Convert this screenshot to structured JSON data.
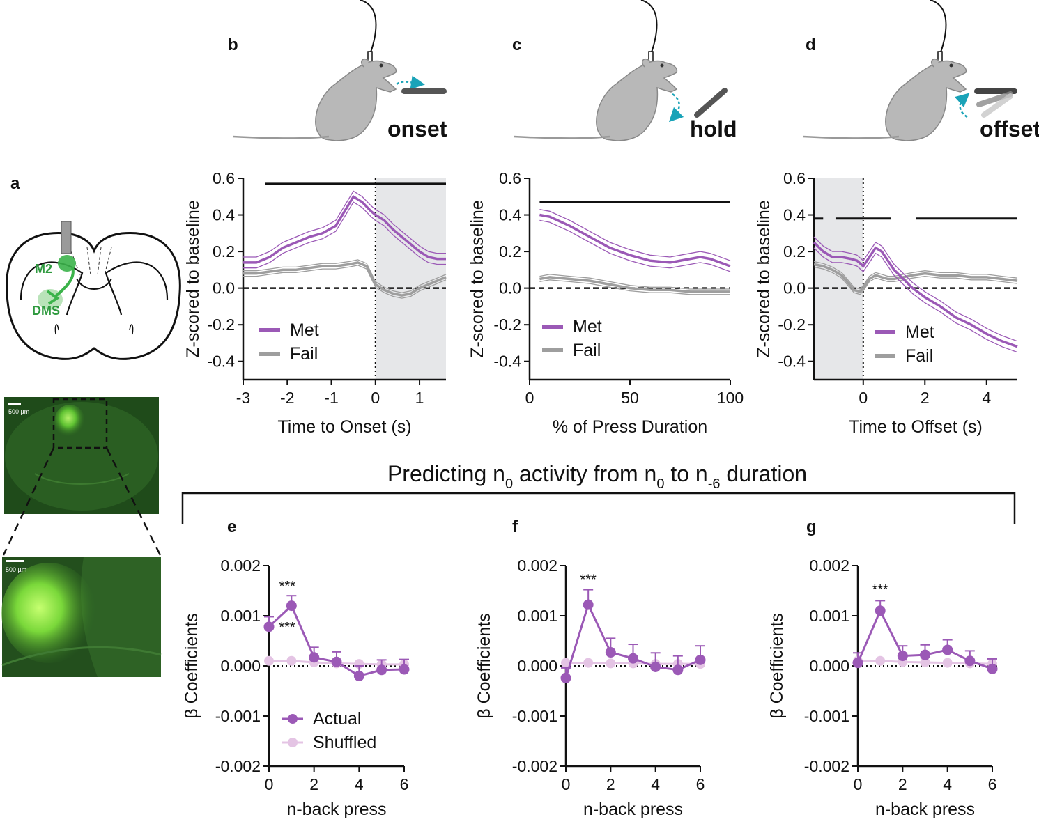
{
  "panels": {
    "a": "a",
    "b": "b",
    "c": "c",
    "d": "d",
    "e": "e",
    "f": "f",
    "g": "g"
  },
  "schematics": {
    "onset_label": "onset",
    "hold_label": "hold",
    "offset_label": "offset",
    "brain_labels": [
      "M2",
      "DMS"
    ],
    "scale_bar_label": "500 µm",
    "colors": {
      "mouse": "#b8b8b8",
      "arrow": "#1aa3b8",
      "lever": "#555555",
      "green": "#3bb34a"
    }
  },
  "regression_title": {
    "prefix": "Predicting n",
    "sub1": "0",
    "middle": " activity from n",
    "sub2": "0",
    "to": " to n",
    "sub3": "-6",
    "suffix": " duration"
  },
  "chart_data": [
    {
      "id": "b",
      "type": "line",
      "xlabel": "Time to Onset (s)",
      "ylabel": "Z-scored to baseline",
      "xlim": [
        -3,
        1.6
      ],
      "ylim": [
        -0.5,
        0.6
      ],
      "xticks": [
        -3,
        -2,
        -1,
        0,
        1
      ],
      "xtick_labels": [
        "-3",
        "-2",
        "-1",
        "0",
        "1"
      ],
      "yticks": [
        -0.4,
        -0.2,
        0.0,
        0.2,
        0.4,
        0.6
      ],
      "ytick_labels": [
        "-0.4",
        "-0.2",
        "0.0",
        "0.2",
        "0.4",
        "0.6"
      ],
      "shade": [
        0,
        1.6
      ],
      "vline": 0,
      "sig_bars": [
        [
          -2.5,
          1.6
        ]
      ],
      "sig_y": 0.57,
      "legend": [
        "Met",
        "Fail"
      ],
      "series": [
        {
          "name": "Met",
          "color": "#9b59b6",
          "sem": 0.03,
          "x": [
            -3,
            -2.7,
            -2.4,
            -2.1,
            -1.8,
            -1.5,
            -1.2,
            -0.9,
            -0.7,
            -0.5,
            -0.3,
            -0.1,
            0,
            0.2,
            0.4,
            0.6,
            0.8,
            1.0,
            1.2,
            1.4,
            1.6
          ],
          "y": [
            0.14,
            0.14,
            0.17,
            0.22,
            0.25,
            0.28,
            0.3,
            0.34,
            0.42,
            0.5,
            0.47,
            0.42,
            0.4,
            0.37,
            0.32,
            0.28,
            0.24,
            0.2,
            0.17,
            0.16,
            0.16
          ]
        },
        {
          "name": "Fail",
          "color": "#9e9e9e",
          "sem": 0.015,
          "x": [
            -3,
            -2.7,
            -2.4,
            -2.1,
            -1.8,
            -1.5,
            -1.2,
            -0.9,
            -0.6,
            -0.4,
            -0.2,
            -0.1,
            0,
            0.2,
            0.4,
            0.6,
            0.8,
            1.0,
            1.2,
            1.4,
            1.6
          ],
          "y": [
            0.08,
            0.08,
            0.09,
            0.1,
            0.1,
            0.11,
            0.12,
            0.12,
            0.13,
            0.14,
            0.12,
            0.07,
            0.02,
            -0.01,
            -0.03,
            -0.04,
            -0.03,
            0.0,
            0.02,
            0.04,
            0.06
          ]
        }
      ]
    },
    {
      "id": "c",
      "type": "line",
      "xlabel": "% of Press Duration",
      "ylabel": "Z-scored to baseline",
      "xlim": [
        0,
        100
      ],
      "ylim": [
        -0.5,
        0.6
      ],
      "xticks": [
        0,
        50,
        100
      ],
      "xtick_labels": [
        "0",
        "50",
        "100"
      ],
      "yticks": [
        -0.4,
        -0.2,
        0.0,
        0.2,
        0.4,
        0.6
      ],
      "ytick_labels": [
        "-0.4",
        "-0.2",
        "0.0",
        "0.2",
        "0.4",
        "0.6"
      ],
      "sig_bars": [
        [
          5,
          100
        ]
      ],
      "sig_y": 0.47,
      "legend": [
        "Met",
        "Fail"
      ],
      "series": [
        {
          "name": "Met",
          "color": "#9b59b6",
          "sem": 0.03,
          "x": [
            5,
            10,
            20,
            30,
            40,
            50,
            60,
            70,
            80,
            85,
            90,
            100
          ],
          "y": [
            0.4,
            0.39,
            0.34,
            0.28,
            0.22,
            0.18,
            0.15,
            0.14,
            0.16,
            0.17,
            0.16,
            0.12
          ]
        },
        {
          "name": "Fail",
          "color": "#9e9e9e",
          "sem": 0.015,
          "x": [
            5,
            10,
            20,
            30,
            40,
            50,
            60,
            70,
            80,
            90,
            100
          ],
          "y": [
            0.05,
            0.06,
            0.05,
            0.04,
            0.02,
            0.0,
            -0.01,
            -0.01,
            -0.02,
            -0.02,
            -0.02
          ]
        }
      ]
    },
    {
      "id": "d",
      "type": "line",
      "xlabel": "Time to Offset (s)",
      "ylabel": "Z-scored to baseline",
      "xlim": [
        -1.6,
        5
      ],
      "ylim": [
        -0.5,
        0.6
      ],
      "xticks": [
        0,
        2,
        4
      ],
      "xtick_labels": [
        "0",
        "2",
        "4"
      ],
      "yticks": [
        -0.4,
        -0.2,
        0.0,
        0.2,
        0.4,
        0.6
      ],
      "ytick_labels": [
        "-0.4",
        "-0.2",
        "0.0",
        "0.2",
        "0.4",
        "0.6"
      ],
      "shade": [
        -1.6,
        0
      ],
      "vline": 0,
      "sig_bars": [
        [
          -1.6,
          -1.3
        ],
        [
          -0.9,
          0.9
        ],
        [
          1.7,
          5
        ]
      ],
      "sig_y": 0.38,
      "legend": [
        "Met",
        "Fail"
      ],
      "series": [
        {
          "name": "Met",
          "color": "#9b59b6",
          "sem": 0.03,
          "x": [
            -1.6,
            -1.3,
            -1.0,
            -0.7,
            -0.4,
            -0.2,
            0,
            0.2,
            0.4,
            0.6,
            0.8,
            1.0,
            1.3,
            1.6,
            2.0,
            2.5,
            3.0,
            3.5,
            4.0,
            4.5,
            5.0
          ],
          "y": [
            0.25,
            0.2,
            0.17,
            0.17,
            0.16,
            0.15,
            0.12,
            0.17,
            0.22,
            0.2,
            0.15,
            0.1,
            0.05,
            0.0,
            -0.05,
            -0.1,
            -0.16,
            -0.2,
            -0.25,
            -0.29,
            -0.32
          ]
        },
        {
          "name": "Fail",
          "color": "#9e9e9e",
          "sem": 0.015,
          "x": [
            -1.6,
            -1.3,
            -1.0,
            -0.7,
            -0.5,
            -0.3,
            -0.1,
            0,
            0.2,
            0.4,
            0.6,
            0.8,
            1.0,
            1.3,
            1.6,
            2.0,
            2.5,
            3.0,
            3.5,
            4.0,
            4.5,
            5.0
          ],
          "y": [
            0.13,
            0.12,
            0.1,
            0.07,
            0.03,
            -0.01,
            -0.02,
            0.0,
            0.05,
            0.07,
            0.06,
            0.05,
            0.05,
            0.06,
            0.07,
            0.08,
            0.07,
            0.07,
            0.06,
            0.06,
            0.05,
            0.04
          ]
        }
      ]
    },
    {
      "id": "e",
      "type": "line",
      "xlabel": "n-back press",
      "ylabel": "β Coefficients",
      "xlim": [
        0,
        6
      ],
      "ylim": [
        -0.002,
        0.002
      ],
      "xticks": [
        0,
        2,
        4,
        6
      ],
      "xtick_labels": [
        "0",
        "2",
        "4",
        "6"
      ],
      "yticks": [
        -0.002,
        -0.001,
        0.0,
        0.001,
        0.002
      ],
      "ytick_labels": [
        "-0.002",
        "-0.001",
        "0.000",
        "0.001",
        "0.002"
      ],
      "legend": [
        "Actual",
        "Shuffled"
      ],
      "annotations": [
        {
          "x": 1,
          "y": 0.00142,
          "text": "***",
          "dx": -6,
          "dy": -6
        },
        {
          "x": 0,
          "y": 0.00068,
          "text": "***",
          "dx": 26,
          "dy": 0
        }
      ],
      "series": [
        {
          "name": "Actual",
          "color": "#9b59b6",
          "x": [
            0,
            1,
            2,
            3,
            4,
            5,
            6
          ],
          "y": [
            0.00078,
            0.0012,
            0.00017,
            8e-05,
            -0.0002,
            -8e-05,
            -7e-05
          ],
          "err": [
            0.0002,
            0.0002,
            0.0002,
            0.0002,
            0.0002,
            0.0002,
            0.0002
          ]
        },
        {
          "name": "Shuffled",
          "color": "#e4c4e4",
          "x": [
            0,
            1,
            2,
            3,
            4,
            5,
            6
          ],
          "y": [
            0.0001,
            0.0001,
            7e-05,
            5e-05,
            4e-05,
            3e-05,
            3e-05
          ]
        }
      ]
    },
    {
      "id": "f",
      "type": "line",
      "xlabel": "n-back press",
      "ylabel": "β Coefficients",
      "xlim": [
        0,
        6
      ],
      "ylim": [
        -0.002,
        0.002
      ],
      "xticks": [
        0,
        2,
        4,
        6
      ],
      "xtick_labels": [
        "0",
        "2",
        "4",
        "6"
      ],
      "yticks": [
        -0.002,
        -0.001,
        0.0,
        0.001,
        0.002
      ],
      "ytick_labels": [
        "-0.002",
        "-0.001",
        "0.000",
        "0.001",
        "0.002"
      ],
      "annotations": [
        {
          "x": 1,
          "y": 0.00155,
          "text": "***",
          "dx": 0,
          "dy": -6
        }
      ],
      "series": [
        {
          "name": "Actual",
          "color": "#9b59b6",
          "x": [
            0,
            1,
            2,
            3,
            4,
            5,
            6
          ],
          "y": [
            -0.00024,
            0.00122,
            0.00027,
            0.00015,
            -2e-05,
            -8e-05,
            0.00012
          ],
          "err": [
            0.0002,
            0.0003,
            0.00028,
            0.00028,
            0.00028,
            0.00028,
            0.00028
          ]
        },
        {
          "name": "Shuffled",
          "color": "#e4c4e4",
          "x": [
            0,
            1,
            2,
            3,
            4,
            5,
            6
          ],
          "y": [
            6e-05,
            6e-05,
            5e-05,
            5e-05,
            4e-05,
            4e-05,
            4e-05
          ]
        }
      ]
    },
    {
      "id": "g",
      "type": "line",
      "xlabel": "n-back press",
      "ylabel": "β Coefficients",
      "xlim": [
        0,
        6
      ],
      "ylim": [
        -0.002,
        0.002
      ],
      "xticks": [
        0,
        2,
        4,
        6
      ],
      "xtick_labels": [
        "0",
        "2",
        "4",
        "6"
      ],
      "yticks": [
        -0.002,
        -0.001,
        0.0,
        0.001,
        0.002
      ],
      "ytick_labels": [
        "-0.002",
        "-0.001",
        "0.000",
        "0.001",
        "0.002"
      ],
      "annotations": [
        {
          "x": 1,
          "y": 0.00135,
          "text": "***",
          "dx": 0,
          "dy": -6
        }
      ],
      "series": [
        {
          "name": "Actual",
          "color": "#9b59b6",
          "x": [
            0,
            1,
            2,
            3,
            4,
            5,
            6
          ],
          "y": [
            6e-05,
            0.0011,
            0.0002,
            0.00022,
            0.00032,
            0.0001,
            -6e-05
          ],
          "err": [
            0.0002,
            0.0002,
            0.0002,
            0.0002,
            0.0002,
            0.0002,
            0.0002
          ]
        },
        {
          "name": "Shuffled",
          "color": "#e4c4e4",
          "x": [
            0,
            1,
            2,
            3,
            4,
            5,
            6
          ],
          "y": [
            0.0001,
            0.0001,
            8e-05,
            7e-05,
            6e-05,
            5e-05,
            4e-05
          ]
        }
      ]
    }
  ]
}
